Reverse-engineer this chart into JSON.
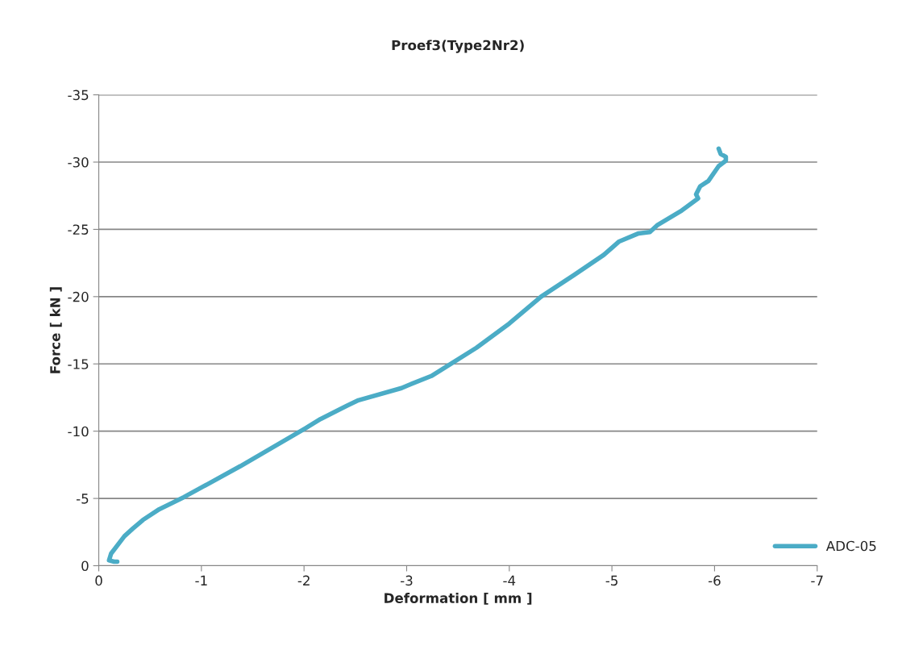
{
  "chart_data": {
    "type": "line",
    "title": "Proef3(Type2Nr2)",
    "xlabel": "Deformation [ mm ]",
    "ylabel": "Force [ kN ]",
    "xlim": [
      0,
      -7
    ],
    "xticks": [
      0,
      -1,
      -2,
      -3,
      -4,
      -5,
      -6,
      -7
    ],
    "ylim": [
      0,
      -35
    ],
    "yticks": [
      0,
      -5,
      -10,
      -15,
      -20,
      -25,
      -30,
      -35
    ],
    "grid": "y",
    "legend": "bottom right",
    "marker": "none",
    "line_style": "solid",
    "series": [
      {
        "name": "ADC-05",
        "color": "#4bacc6",
        "x": [
          -0.18,
          -0.15,
          -0.1,
          -0.12,
          -0.25,
          -0.33,
          -0.43,
          -0.59,
          -0.83,
          -1.38,
          -2.01,
          -2.16,
          -2.42,
          -2.53,
          -2.95,
          -3.01,
          -3.24,
          -3.45,
          -3.68,
          -4.0,
          -4.31,
          -4.63,
          -4.92,
          -5.07,
          -5.26,
          -5.37,
          -5.44,
          -5.68,
          -5.84,
          -5.82,
          -5.86,
          -5.94,
          -6.04,
          -6.11,
          -6.11,
          -6.06,
          -6.04
        ],
        "values": [
          -0.3,
          -0.3,
          -0.4,
          -0.9,
          -2.2,
          -2.75,
          -3.4,
          -4.2,
          -5.1,
          -7.4,
          -10.2,
          -10.9,
          -11.9,
          -12.3,
          -13.2,
          -13.4,
          -14.1,
          -15.1,
          -16.2,
          -18.0,
          -20.0,
          -21.6,
          -23.1,
          -24.1,
          -24.7,
          -24.8,
          -25.3,
          -26.4,
          -27.3,
          -27.6,
          -28.2,
          -28.6,
          -29.7,
          -30.1,
          -30.4,
          -30.6,
          -31.0
        ]
      }
    ]
  }
}
